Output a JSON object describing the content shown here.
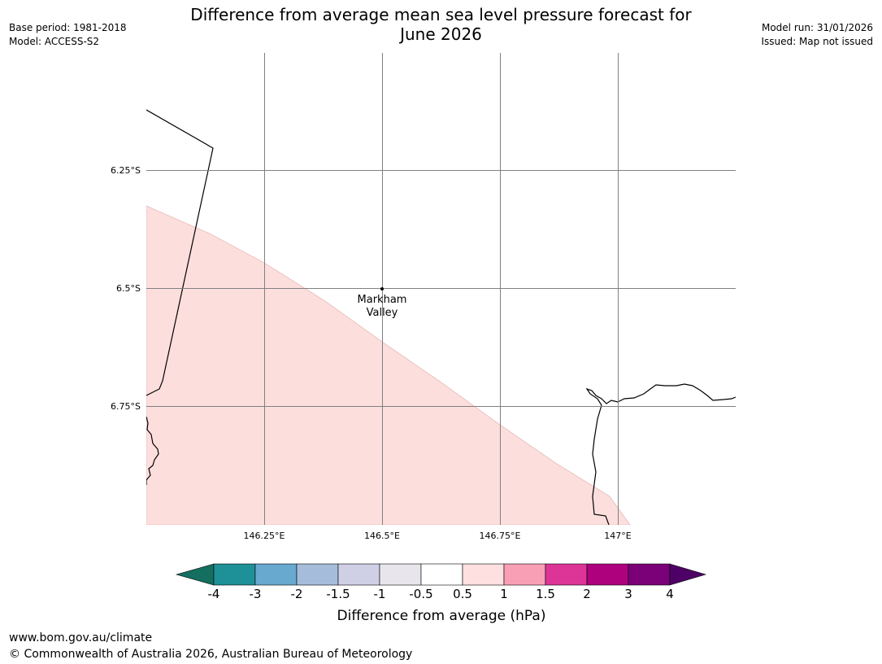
{
  "header": {
    "title_line1": "Difference from average mean sea level pressure forecast for",
    "title_line2": "June 2026",
    "base_period": "Base period: 1981-2018",
    "model": "Model: ACCESS-S2",
    "model_run": "Model run: 31/01/2026",
    "issued": "Issued: Map not issued"
  },
  "map": {
    "lat_labels": [
      "6.25°S",
      "6.5°S",
      "6.75°S"
    ],
    "lon_labels": [
      "146.25°E",
      "146.5°E",
      "146.75°E",
      "147°E"
    ],
    "place_name_line1": "Markham",
    "place_name_line2": "Valley",
    "forecast_anomaly_fill_color": "#fcdfdd",
    "land_outline_color": "#000000",
    "grid_color": "#808080"
  },
  "colorbar": {
    "tick_labels": [
      "-4",
      "-3",
      "-2",
      "-1.5",
      "-1",
      "-0.5",
      "0.5",
      "1",
      "1.5",
      "2",
      "3",
      "4"
    ],
    "colors": [
      "#146f60",
      "#1e9097",
      "#67a9cf",
      "#a6bcdb",
      "#cfcfe6",
      "#e8e6ec",
      "#ffffff",
      "#fde0df",
      "#f89fb5",
      "#dd3497",
      "#ae017e",
      "#7a0177",
      "#4d0066"
    ],
    "label": "Difference from average (hPa)"
  },
  "footer": {
    "website": "www.bom.gov.au/climate",
    "copyright": "© Commonwealth of Australia 2026, Australian Bureau of Meteorology"
  }
}
